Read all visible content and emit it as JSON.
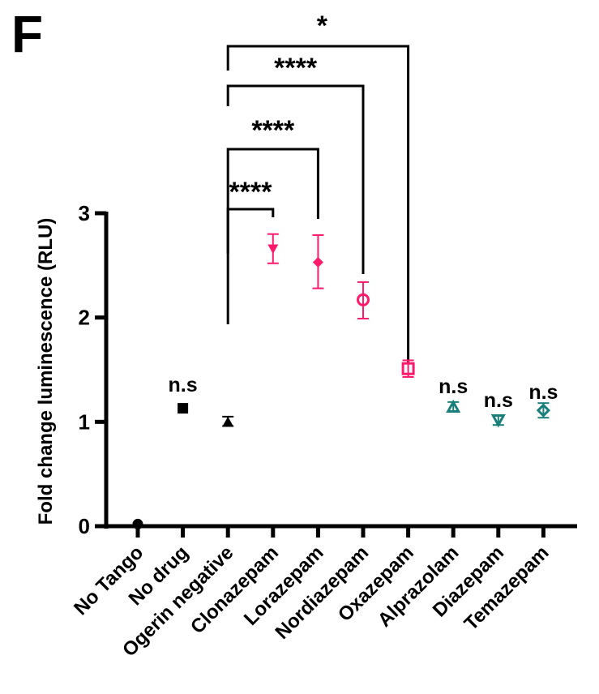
{
  "panel_label": "F",
  "chart_data": {
    "type": "scatter",
    "title": "",
    "xlabel": "",
    "ylabel": "Fold change luminescence (RLU)",
    "ylim": [
      0,
      3
    ],
    "yticks": [
      0,
      1,
      2,
      3
    ],
    "ytick_labels": [
      "0",
      "1",
      "2",
      "3"
    ],
    "grid": false,
    "legend": "none",
    "categories": [
      "No Tango",
      "No drug",
      "Ogerin negative",
      "Clonazepam",
      "Lorazepam",
      "Nordiazepam",
      "Oxazepam",
      "Alprazolam",
      "Diazepam",
      "Temazepam"
    ],
    "series": [
      {
        "name": "No Tango",
        "mean": 0.02,
        "err_low": 0.02,
        "err_high": 0.02,
        "marker": "filled-circle",
        "color": "#000000"
      },
      {
        "name": "No drug",
        "mean": 1.13,
        "err_low": 1.13,
        "err_high": 1.13,
        "marker": "filled-square",
        "color": "#000000"
      },
      {
        "name": "Ogerin negative",
        "mean": 1.0,
        "err_low": 0.96,
        "err_high": 1.05,
        "marker": "filled-triangle-up",
        "color": "#000000"
      },
      {
        "name": "Clonazepam",
        "mean": 2.66,
        "err_low": 2.52,
        "err_high": 2.8,
        "marker": "filled-triangle-down",
        "color": "#FF1A6C"
      },
      {
        "name": "Lorazepam",
        "mean": 2.53,
        "err_low": 2.28,
        "err_high": 2.79,
        "marker": "filled-diamond",
        "color": "#FF1A6C"
      },
      {
        "name": "Nordiazepam",
        "mean": 2.17,
        "err_low": 1.99,
        "err_high": 2.34,
        "marker": "open-circle",
        "color": "#FF1A6C"
      },
      {
        "name": "Oxazepam",
        "mean": 1.51,
        "err_low": 1.43,
        "err_high": 1.59,
        "marker": "open-square",
        "color": "#FF1A6C"
      },
      {
        "name": "Alprazolam",
        "mean": 1.14,
        "err_low": 1.1,
        "err_high": 1.19,
        "marker": "open-triangle-up",
        "color": "#1A7F7A"
      },
      {
        "name": "Diazepam",
        "mean": 1.02,
        "err_low": 0.97,
        "err_high": 1.05,
        "marker": "open-triangle-down",
        "color": "#1A7F7A"
      },
      {
        "name": "Temazepam",
        "mean": 1.11,
        "err_low": 1.04,
        "err_high": 1.18,
        "marker": "open-diamond",
        "color": "#1A7F7A"
      }
    ],
    "annotations": {
      "ns_labels": [
        {
          "category": "No drug",
          "text": "n.s"
        },
        {
          "category": "Alprazolam",
          "text": "n.s"
        },
        {
          "category": "Diazepam",
          "text": "n.s"
        },
        {
          "category": "Temazepam",
          "text": "n.s"
        }
      ],
      "significance_brackets": [
        {
          "from": "Ogerin negative",
          "to": "Clonazepam",
          "text": "****"
        },
        {
          "from": "Ogerin negative",
          "to": "Lorazepam",
          "text": "****"
        },
        {
          "from": "Ogerin negative",
          "to": "Nordiazepam",
          "text": "****"
        },
        {
          "from": "Ogerin negative",
          "to": "Oxazepam",
          "text": "*"
        }
      ]
    }
  }
}
